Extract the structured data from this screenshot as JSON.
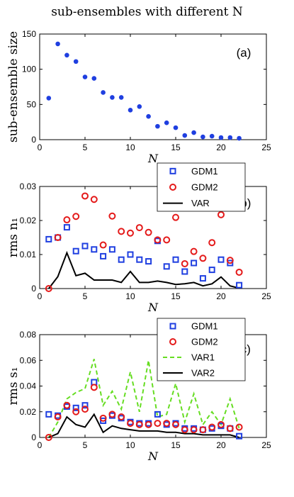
{
  "figure_title": "sub-ensembles with different N",
  "chart_data": [
    {
      "panel": "(a)",
      "type": "scatter",
      "ylabel": "sub-ensemble size",
      "xlabel": "N",
      "xlim": [
        0,
        25
      ],
      "ylim": [
        0,
        150
      ],
      "xticks": [
        0,
        5,
        10,
        15,
        20,
        25
      ],
      "yticks": [
        0,
        50,
        100,
        150
      ],
      "series": [
        {
          "color": "#1f3fe0",
          "marker": "dot",
          "x": [
            1,
            2,
            3,
            4,
            5,
            6,
            7,
            8,
            9,
            10,
            11,
            12,
            13,
            14,
            15,
            16,
            17,
            18,
            19,
            20,
            21,
            22
          ],
          "y": [
            59,
            136,
            120,
            111,
            89,
            87,
            67,
            60,
            60,
            42,
            47,
            33,
            19,
            24,
            17,
            6,
            10,
            4,
            5,
            3,
            3,
            2
          ]
        }
      ]
    },
    {
      "panel": "(b)",
      "type": "scatter",
      "ylabel": "rms n₁",
      "xlabel": "N",
      "xlim": [
        0,
        25
      ],
      "ylim": [
        0,
        0.03
      ],
      "xticks": [
        0,
        5,
        10,
        15,
        20,
        25
      ],
      "yticks": [
        0,
        0.01,
        0.02,
        0.03
      ],
      "legend_position": "top-right",
      "series": [
        {
          "name": "GDM1",
          "color": "#1f3fe0",
          "marker": "square",
          "x": [
            1,
            2,
            3,
            4,
            5,
            6,
            7,
            8,
            9,
            10,
            11,
            12,
            13,
            14,
            15,
            16,
            17,
            18,
            19,
            20,
            21,
            22
          ],
          "y": [
            0.0145,
            0.015,
            0.018,
            0.011,
            0.0125,
            0.0115,
            0.0095,
            0.0115,
            0.0085,
            0.01,
            0.0085,
            0.008,
            0.014,
            0.0065,
            0.0085,
            0.005,
            0.0075,
            0.003,
            0.0055,
            0.0085,
            0.0075,
            0.001
          ]
        },
        {
          "name": "GDM2",
          "color": "#e41a1a",
          "marker": "circle",
          "x": [
            1,
            2,
            3,
            4,
            5,
            6,
            7,
            8,
            9,
            10,
            11,
            12,
            13,
            14,
            15,
            16,
            17,
            18,
            19,
            20,
            21,
            22
          ],
          "y": [
            0,
            0.015,
            0.0202,
            0.0212,
            0.0272,
            0.0262,
            0.0128,
            0.0213,
            0.0168,
            0.0163,
            0.0179,
            0.0165,
            0.0143,
            0.0143,
            0.0209,
            0.0073,
            0.0109,
            0.0089,
            0.0135,
            0.0217,
            0.0083,
            0.0048
          ]
        },
        {
          "name": "VAR",
          "color": "#000000",
          "marker": "line",
          "x": [
            1,
            2,
            3,
            4,
            5,
            6,
            7,
            8,
            9,
            10,
            11,
            12,
            13,
            14,
            15,
            16,
            17,
            18,
            19,
            20,
            21,
            22
          ],
          "y": [
            0,
            0.0035,
            0.0105,
            0.0038,
            0.0045,
            0.0025,
            0.0025,
            0.0025,
            0.0018,
            0.005,
            0.0018,
            0.0018,
            0.0022,
            0.0018,
            0.0012,
            0.0014,
            0.0018,
            0.0008,
            0.0014,
            0.0034,
            0.0008,
            0.0001
          ]
        }
      ]
    },
    {
      "panel": "(c)",
      "type": "scatter",
      "ylabel": "rms s₁",
      "xlabel": "N",
      "xlim": [
        0,
        25
      ],
      "ylim": [
        0,
        0.08
      ],
      "xticks": [
        0,
        5,
        10,
        15,
        20,
        25
      ],
      "yticks": [
        0,
        0.02,
        0.04,
        0.06,
        0.08
      ],
      "legend_position": "top-right",
      "series": [
        {
          "name": "GDM1",
          "color": "#1f3fe0",
          "marker": "square",
          "x": [
            1,
            2,
            3,
            4,
            5,
            6,
            7,
            8,
            9,
            10,
            11,
            12,
            13,
            14,
            15,
            16,
            17,
            18,
            19,
            20,
            21,
            22
          ],
          "y": [
            0.018,
            0.017,
            0.024,
            0.023,
            0.025,
            0.043,
            0.013,
            0.017,
            0.015,
            0.012,
            0.011,
            0.011,
            0.018,
            0.01,
            0.011,
            0.007,
            0.007,
            0.006,
            0.007,
            0.009,
            0.007,
            0.001
          ]
        },
        {
          "name": "GDM2",
          "color": "#e41a1a",
          "marker": "circle",
          "x": [
            1,
            2,
            3,
            4,
            5,
            6,
            7,
            8,
            9,
            10,
            11,
            12,
            13,
            14,
            15,
            16,
            17,
            18,
            19,
            20,
            21,
            22
          ],
          "y": [
            0,
            0.016,
            0.025,
            0.02,
            0.022,
            0.039,
            0.015,
            0.018,
            0.016,
            0.011,
            0.01,
            0.01,
            0.011,
            0.011,
            0.01,
            0.006,
            0.006,
            0.006,
            0.008,
            0.01,
            0.007,
            0.008
          ]
        },
        {
          "name": "VAR1",
          "color": "#66dd22",
          "marker": "dashed",
          "x": [
            1,
            2,
            3,
            4,
            5,
            6,
            7,
            8,
            9,
            10,
            11,
            12,
            13,
            14,
            15,
            16,
            17,
            18,
            19,
            20,
            21,
            22
          ],
          "y": [
            0,
            0.012,
            0.03,
            0.035,
            0.038,
            0.061,
            0.025,
            0.036,
            0.022,
            0.051,
            0.02,
            0.06,
            0.016,
            0.018,
            0.042,
            0.012,
            0.034,
            0.01,
            0.02,
            0.01,
            0.03,
            0.007
          ]
        },
        {
          "name": "VAR2",
          "color": "#000000",
          "marker": "line",
          "x": [
            1,
            2,
            3,
            4,
            5,
            6,
            7,
            8,
            9,
            10,
            11,
            12,
            13,
            14,
            15,
            16,
            17,
            18,
            19,
            20,
            21,
            22
          ],
          "y": [
            0,
            0.003,
            0.016,
            0.01,
            0.008,
            0.018,
            0.004,
            0.009,
            0.007,
            0.006,
            0.005,
            0.005,
            0.005,
            0.004,
            0.004,
            0.003,
            0.003,
            0.002,
            0.002,
            0.002,
            0.002,
            0
          ]
        }
      ]
    }
  ]
}
